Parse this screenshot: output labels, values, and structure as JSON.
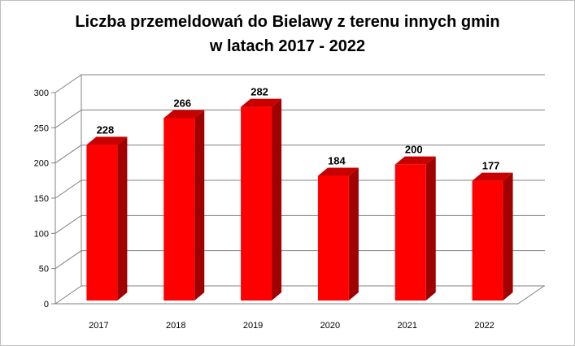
{
  "chart_data": {
    "type": "bar",
    "title_line1": "Liczba przemeldowań do Bielawy z terenu innych gmin",
    "title_line2": "w latach 2017 - 2022",
    "categories": [
      "2017",
      "2018",
      "2019",
      "2020",
      "2021",
      "2022"
    ],
    "values": [
      228,
      266,
      282,
      184,
      200,
      177
    ],
    "ylim": [
      0,
      300
    ],
    "yticks": [
      "0",
      "50",
      "100",
      "150",
      "200",
      "250",
      "300"
    ],
    "grid": true,
    "legend": "none",
    "bar_color": "#ff0000",
    "bar_side_color": "#a00000",
    "bar_top_color": "#c80000"
  }
}
